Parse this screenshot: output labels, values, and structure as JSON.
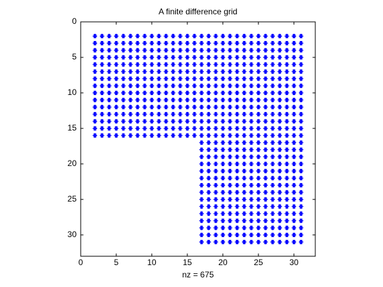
{
  "chart_data": {
    "type": "scatter",
    "title": "A finite difference grid",
    "x_label": "nz = 675",
    "marker": "*",
    "color": "#0000ff",
    "xlim": [
      0,
      33
    ],
    "ylim": [
      0,
      33
    ],
    "y_reversed": true,
    "xticks": [
      0,
      5,
      10,
      15,
      20,
      25,
      30
    ],
    "yticks": [
      0,
      5,
      10,
      15,
      20,
      25,
      30
    ],
    "rows": [
      {
        "y": 2,
        "x": [
          2,
          3,
          4,
          5,
          6,
          7,
          8,
          9,
          10,
          11,
          12,
          13,
          14,
          15,
          16,
          17,
          18,
          19,
          20,
          21,
          22,
          23,
          24,
          25,
          26,
          27,
          28,
          29,
          30,
          31
        ]
      },
      {
        "y": 3,
        "x": [
          2,
          3,
          4,
          5,
          6,
          7,
          8,
          9,
          10,
          11,
          12,
          13,
          14,
          15,
          16,
          17,
          18,
          19,
          20,
          21,
          22,
          23,
          24,
          25,
          26,
          27,
          28,
          29,
          30,
          31
        ]
      },
      {
        "y": 4,
        "x": [
          2,
          3,
          4,
          5,
          6,
          7,
          8,
          9,
          10,
          11,
          12,
          13,
          14,
          15,
          16,
          17,
          18,
          19,
          20,
          21,
          22,
          23,
          24,
          25,
          26,
          27,
          28,
          29,
          30,
          31
        ]
      },
      {
        "y": 5,
        "x": [
          2,
          3,
          4,
          5,
          6,
          7,
          8,
          9,
          10,
          11,
          12,
          13,
          14,
          15,
          16,
          17,
          18,
          19,
          20,
          21,
          22,
          23,
          24,
          25,
          26,
          27,
          28,
          29,
          30,
          31
        ]
      },
      {
        "y": 6,
        "x": [
          2,
          3,
          4,
          5,
          6,
          7,
          8,
          9,
          10,
          11,
          12,
          13,
          14,
          15,
          16,
          17,
          18,
          19,
          20,
          21,
          22,
          23,
          24,
          25,
          26,
          27,
          28,
          29,
          30,
          31
        ]
      },
      {
        "y": 7,
        "x": [
          2,
          3,
          4,
          5,
          6,
          7,
          8,
          9,
          10,
          11,
          12,
          13,
          14,
          15,
          16,
          17,
          18,
          19,
          20,
          21,
          22,
          23,
          24,
          25,
          26,
          27,
          28,
          29,
          30,
          31
        ]
      },
      {
        "y": 8,
        "x": [
          2,
          3,
          4,
          5,
          6,
          7,
          8,
          9,
          10,
          11,
          12,
          13,
          14,
          15,
          16,
          17,
          18,
          19,
          20,
          21,
          22,
          23,
          24,
          25,
          26,
          27,
          28,
          29,
          30,
          31
        ]
      },
      {
        "y": 9,
        "x": [
          2,
          3,
          4,
          5,
          6,
          7,
          8,
          9,
          10,
          11,
          12,
          13,
          14,
          15,
          16,
          17,
          18,
          19,
          20,
          21,
          22,
          23,
          24,
          25,
          26,
          27,
          28,
          29,
          30,
          31
        ]
      },
      {
        "y": 10,
        "x": [
          2,
          3,
          4,
          5,
          6,
          7,
          8,
          9,
          10,
          11,
          12,
          13,
          14,
          15,
          16,
          17,
          18,
          19,
          20,
          21,
          22,
          23,
          24,
          25,
          26,
          27,
          28,
          29,
          30,
          31
        ]
      },
      {
        "y": 11,
        "x": [
          2,
          3,
          4,
          5,
          6,
          7,
          8,
          9,
          10,
          11,
          12,
          13,
          14,
          15,
          16,
          17,
          18,
          19,
          20,
          21,
          22,
          23,
          24,
          25,
          26,
          27,
          28,
          29,
          30,
          31
        ]
      },
      {
        "y": 12,
        "x": [
          2,
          3,
          4,
          5,
          6,
          7,
          8,
          9,
          10,
          11,
          12,
          13,
          14,
          15,
          16,
          17,
          18,
          19,
          20,
          21,
          22,
          23,
          24,
          25,
          26,
          27,
          28,
          29,
          30,
          31
        ]
      },
      {
        "y": 13,
        "x": [
          2,
          3,
          4,
          5,
          6,
          7,
          8,
          9,
          10,
          11,
          12,
          13,
          14,
          15,
          16,
          17,
          18,
          19,
          20,
          21,
          22,
          23,
          24,
          25,
          26,
          27,
          28,
          29,
          30,
          31
        ]
      },
      {
        "y": 14,
        "x": [
          2,
          3,
          4,
          5,
          6,
          7,
          8,
          9,
          10,
          11,
          12,
          13,
          14,
          15,
          16,
          17,
          18,
          19,
          20,
          21,
          22,
          23,
          24,
          25,
          26,
          27,
          28,
          29,
          30,
          31
        ]
      },
      {
        "y": 15,
        "x": [
          2,
          3,
          4,
          5,
          6,
          7,
          8,
          9,
          10,
          11,
          12,
          13,
          14,
          15,
          16,
          17,
          18,
          19,
          20,
          21,
          22,
          23,
          24,
          25,
          26,
          27,
          28,
          29,
          30,
          31
        ]
      },
      {
        "y": 16,
        "x": [
          2,
          3,
          4,
          5,
          6,
          7,
          8,
          9,
          10,
          11,
          12,
          13,
          14,
          15,
          16,
          17,
          18,
          19,
          20,
          21,
          22,
          23,
          24,
          25,
          26,
          27,
          28,
          29,
          30,
          31
        ]
      },
      {
        "y": 17,
        "x": [
          17,
          18,
          19,
          20,
          21,
          22,
          23,
          24,
          25,
          26,
          27,
          28,
          29,
          30,
          31
        ]
      },
      {
        "y": 18,
        "x": [
          17,
          18,
          19,
          20,
          21,
          22,
          23,
          24,
          25,
          26,
          27,
          28,
          29,
          30,
          31
        ]
      },
      {
        "y": 19,
        "x": [
          17,
          18,
          19,
          20,
          21,
          22,
          23,
          24,
          25,
          26,
          27,
          28,
          29,
          30,
          31
        ]
      },
      {
        "y": 20,
        "x": [
          17,
          18,
          19,
          20,
          21,
          22,
          23,
          24,
          25,
          26,
          27,
          28,
          29,
          30,
          31
        ]
      },
      {
        "y": 21,
        "x": [
          17,
          18,
          19,
          20,
          21,
          22,
          23,
          24,
          25,
          26,
          27,
          28,
          29,
          30,
          31
        ]
      },
      {
        "y": 22,
        "x": [
          17,
          18,
          19,
          20,
          21,
          22,
          23,
          24,
          25,
          26,
          27,
          28,
          29,
          30,
          31
        ]
      },
      {
        "y": 23,
        "x": [
          17,
          18,
          19,
          20,
          21,
          22,
          23,
          24,
          25,
          26,
          27,
          28,
          29,
          30,
          31
        ]
      },
      {
        "y": 24,
        "x": [
          17,
          18,
          19,
          20,
          21,
          22,
          23,
          24,
          25,
          26,
          27,
          28,
          29,
          30,
          31
        ]
      },
      {
        "y": 25,
        "x": [
          17,
          18,
          19,
          20,
          21,
          22,
          23,
          24,
          25,
          26,
          27,
          28,
          29,
          30,
          31
        ]
      },
      {
        "y": 26,
        "x": [
          17,
          18,
          19,
          20,
          21,
          22,
          23,
          24,
          25,
          26,
          27,
          28,
          29,
          30,
          31
        ]
      },
      {
        "y": 27,
        "x": [
          17,
          18,
          19,
          20,
          21,
          22,
          23,
          24,
          25,
          26,
          27,
          28,
          29,
          30,
          31
        ]
      },
      {
        "y": 28,
        "x": [
          17,
          18,
          19,
          20,
          21,
          22,
          23,
          24,
          25,
          26,
          27,
          28,
          29,
          30,
          31
        ]
      },
      {
        "y": 29,
        "x": [
          17,
          18,
          19,
          20,
          21,
          22,
          23,
          24,
          25,
          26,
          27,
          28,
          29,
          30,
          31
        ]
      },
      {
        "y": 30,
        "x": [
          17,
          18,
          19,
          20,
          21,
          22,
          23,
          24,
          25,
          26,
          27,
          28,
          29,
          30,
          31
        ]
      },
      {
        "y": 31,
        "x": [
          17,
          18,
          19,
          20,
          21,
          22,
          23,
          24,
          25,
          26,
          27,
          28,
          29,
          30,
          31
        ]
      }
    ]
  }
}
